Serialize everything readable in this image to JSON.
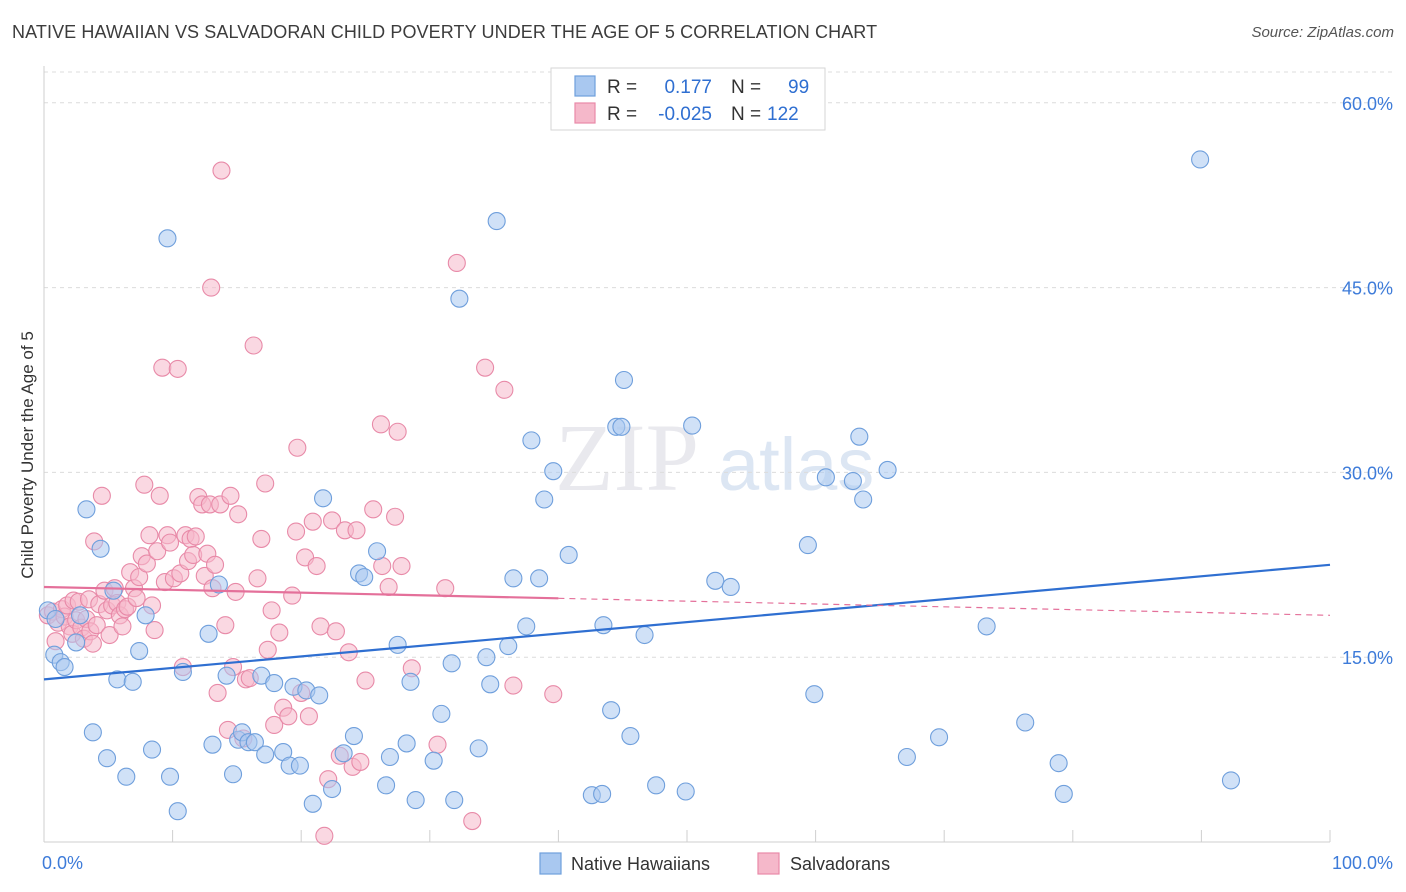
{
  "header": {
    "title": "NATIVE HAWAIIAN VS SALVADORAN CHILD POVERTY UNDER THE AGE OF 5 CORRELATION CHART",
    "source": "Source: ZipAtlas.com"
  },
  "watermark": {
    "zip": "ZIP",
    "atlas": "atlas"
  },
  "legend": {
    "rows": [
      {
        "r_label": "R =",
        "r_value": "0.177",
        "n_label": "N =",
        "n_value": "99"
      },
      {
        "r_label": "R =",
        "r_value": "-0.025",
        "n_label": "N =",
        "n_value": "122"
      }
    ]
  },
  "bottom_legend": {
    "series1": "Native Hawaiians",
    "series2": "Salvadorans"
  },
  "colors": {
    "blue_fill": "#a9c8f0",
    "blue_stroke": "#6f9fdc",
    "blue_line": "#2f6fd1",
    "pink_fill": "#f5b8ca",
    "pink_stroke": "#e88aa8",
    "pink_line": "#e4709a",
    "axis_text": "#3d7bd9"
  },
  "chart_data": {
    "type": "scatter",
    "title": "NATIVE HAWAIIAN VS SALVADORAN CHILD POVERTY UNDER THE AGE OF 5 CORRELATION CHART",
    "xlabel": "",
    "ylabel": "Child Poverty Under the Age of 5",
    "xlim": [
      0,
      100
    ],
    "ylim": [
      0,
      62.5
    ],
    "x_tick_labels": [
      "0.0%",
      "100.0%"
    ],
    "y_ticks": [
      15,
      30,
      45,
      60
    ],
    "y_tick_labels": [
      "15.0%",
      "30.0%",
      "45.0%",
      "60.0%"
    ],
    "series": [
      {
        "name": "Native Hawaiians",
        "r": 0.177,
        "n": 99,
        "trend": {
          "x0": 0,
          "y0": 13.2,
          "x1": 100,
          "y1": 22.5,
          "dashed_from": null
        },
        "points": [
          [
            0.3,
            18.8
          ],
          [
            0.9,
            18.1
          ],
          [
            0.8,
            15.2
          ],
          [
            1.3,
            14.6
          ],
          [
            1.6,
            14.2
          ],
          [
            2.5,
            16.2
          ],
          [
            2.8,
            18.4
          ],
          [
            3.3,
            27
          ],
          [
            3.8,
            8.9
          ],
          [
            4.4,
            23.8
          ],
          [
            4.9,
            6.8
          ],
          [
            5.4,
            20.4
          ],
          [
            5.7,
            13.2
          ],
          [
            6.4,
            5.3
          ],
          [
            6.9,
            13
          ],
          [
            7.4,
            15.5
          ],
          [
            7.9,
            18.4
          ],
          [
            8.4,
            7.5
          ],
          [
            9.6,
            49
          ],
          [
            9.8,
            5.3
          ],
          [
            10.4,
            2.5
          ],
          [
            10.8,
            13.8
          ],
          [
            12.8,
            16.9
          ],
          [
            13.1,
            7.9
          ],
          [
            13.6,
            20.9
          ],
          [
            14.2,
            13.5
          ],
          [
            14.7,
            5.5
          ],
          [
            15.1,
            8.3
          ],
          [
            15.4,
            8.9
          ],
          [
            15.9,
            8.1
          ],
          [
            16.4,
            8.1
          ],
          [
            16.9,
            13.5
          ],
          [
            17.2,
            7.1
          ],
          [
            17.9,
            12.9
          ],
          [
            18.6,
            7.3
          ],
          [
            19.1,
            6.2
          ],
          [
            19.4,
            12.6
          ],
          [
            19.9,
            6.2
          ],
          [
            20.4,
            12.3
          ],
          [
            20.9,
            3.1
          ],
          [
            21.4,
            11.9
          ],
          [
            21.7,
            27.9
          ],
          [
            22.4,
            4.3
          ],
          [
            23.3,
            7.2
          ],
          [
            24.1,
            8.6
          ],
          [
            24.5,
            21.8
          ],
          [
            24.9,
            21.5
          ],
          [
            25.9,
            23.6
          ],
          [
            26.6,
            4.6
          ],
          [
            26.9,
            6.9
          ],
          [
            27.5,
            16
          ],
          [
            28.2,
            8
          ],
          [
            28.5,
            13
          ],
          [
            28.9,
            3.4
          ],
          [
            30.3,
            6.6
          ],
          [
            30.9,
            10.4
          ],
          [
            31.9,
            3.4
          ],
          [
            31.7,
            14.5
          ],
          [
            32.3,
            44.1
          ],
          [
            33.8,
            7.6
          ],
          [
            34.4,
            15
          ],
          [
            34.7,
            12.8
          ],
          [
            35.2,
            50.4
          ],
          [
            36.1,
            15.9
          ],
          [
            36.5,
            21.4
          ],
          [
            37.5,
            17.5
          ],
          [
            37.9,
            32.6
          ],
          [
            38.5,
            21.4
          ],
          [
            38.9,
            27.8
          ],
          [
            39.6,
            30.1
          ],
          [
            40.8,
            23.3
          ],
          [
            42.6,
            3.8
          ],
          [
            43.4,
            3.9
          ],
          [
            43.5,
            17.6
          ],
          [
            44.1,
            10.7
          ],
          [
            44.5,
            33.7
          ],
          [
            44.9,
            33.7
          ],
          [
            45.1,
            37.5
          ],
          [
            45.6,
            8.6
          ],
          [
            46.7,
            16.8
          ],
          [
            47.6,
            4.6
          ],
          [
            49.9,
            4.1
          ],
          [
            50.4,
            33.8
          ],
          [
            52.2,
            21.2
          ],
          [
            53.4,
            20.7
          ],
          [
            59.4,
            24.1
          ],
          [
            59.9,
            12
          ],
          [
            60.8,
            29.6
          ],
          [
            62.9,
            29.3
          ],
          [
            63.4,
            32.9
          ],
          [
            63.7,
            27.8
          ],
          [
            65.6,
            30.2
          ],
          [
            67.1,
            6.9
          ],
          [
            69.6,
            8.5
          ],
          [
            73.3,
            17.5
          ],
          [
            76.3,
            9.7
          ],
          [
            78.9,
            6.4
          ],
          [
            79.3,
            3.9
          ],
          [
            89.9,
            55.4
          ],
          [
            92.3,
            5
          ]
        ]
      },
      {
        "name": "Salvadorans",
        "r": -0.025,
        "n": 122,
        "trend": {
          "x0": 0,
          "y0": 20.7,
          "x1": 100,
          "y1": 18.4,
          "dashed_from": 40
        },
        "points": [
          [
            0.3,
            18.4
          ],
          [
            0.7,
            18.7
          ],
          [
            0.9,
            16.3
          ],
          [
            1.1,
            17.8
          ],
          [
            1.4,
            18.9
          ],
          [
            1.6,
            18.3
          ],
          [
            1.8,
            19.2
          ],
          [
            2.0,
            17.5
          ],
          [
            2.2,
            16.9
          ],
          [
            2.3,
            19.6
          ],
          [
            2.5,
            18.0
          ],
          [
            2.7,
            19.5
          ],
          [
            2.9,
            17.4
          ],
          [
            3.1,
            16.5
          ],
          [
            3.3,
            18.1
          ],
          [
            3.5,
            19.7
          ],
          [
            3.6,
            17.1
          ],
          [
            3.8,
            16.1
          ],
          [
            3.9,
            24.4
          ],
          [
            4.1,
            17.6
          ],
          [
            4.3,
            19.3
          ],
          [
            4.5,
            28.1
          ],
          [
            4.7,
            20.4
          ],
          [
            4.9,
            18.8
          ],
          [
            5.1,
            16.8
          ],
          [
            5.3,
            19.2
          ],
          [
            5.5,
            20.6
          ],
          [
            5.7,
            19.4
          ],
          [
            5.9,
            18.4
          ],
          [
            6.1,
            17.5
          ],
          [
            6.3,
            18.9
          ],
          [
            6.5,
            19.1
          ],
          [
            6.7,
            21.9
          ],
          [
            7.0,
            20.6
          ],
          [
            7.2,
            19.8
          ],
          [
            7.4,
            21.5
          ],
          [
            7.6,
            23.2
          ],
          [
            7.8,
            29
          ],
          [
            8.0,
            22.6
          ],
          [
            8.2,
            24.9
          ],
          [
            8.4,
            19.2
          ],
          [
            8.6,
            17.2
          ],
          [
            8.8,
            23.6
          ],
          [
            9.0,
            28.1
          ],
          [
            9.2,
            38.5
          ],
          [
            9.4,
            21.1
          ],
          [
            9.6,
            24.9
          ],
          [
            9.8,
            24.3
          ],
          [
            10.1,
            21.4
          ],
          [
            10.4,
            38.4
          ],
          [
            10.6,
            21.8
          ],
          [
            10.8,
            14.2
          ],
          [
            11.0,
            24.9
          ],
          [
            11.2,
            22.8
          ],
          [
            11.4,
            24.6
          ],
          [
            11.6,
            23.3
          ],
          [
            11.8,
            24.8
          ],
          [
            12.0,
            28
          ],
          [
            12.3,
            27.4
          ],
          [
            12.5,
            21.6
          ],
          [
            12.7,
            23.4
          ],
          [
            12.9,
            27.4
          ],
          [
            13.1,
            20.6
          ],
          [
            13.3,
            22.5
          ],
          [
            13.5,
            12.1
          ],
          [
            13.7,
            27.4
          ],
          [
            13.0,
            45
          ],
          [
            13.8,
            54.5
          ],
          [
            14.1,
            17.6
          ],
          [
            14.3,
            9.1
          ],
          [
            14.5,
            28.1
          ],
          [
            14.7,
            14.2
          ],
          [
            14.9,
            20.3
          ],
          [
            15.1,
            26.6
          ],
          [
            15.5,
            8.4
          ],
          [
            15.7,
            13.2
          ],
          [
            16.0,
            13.3
          ],
          [
            16.3,
            40.3
          ],
          [
            16.6,
            21.4
          ],
          [
            16.9,
            24.6
          ],
          [
            17.2,
            29.1
          ],
          [
            17.4,
            15.6
          ],
          [
            17.7,
            18.8
          ],
          [
            17.9,
            9.5
          ],
          [
            18.3,
            17
          ],
          [
            18.6,
            10.9
          ],
          [
            19.0,
            10.2
          ],
          [
            19.3,
            20
          ],
          [
            19.6,
            25.2
          ],
          [
            19.7,
            32
          ],
          [
            20.0,
            12.1
          ],
          [
            20.3,
            23.1
          ],
          [
            20.6,
            10.2
          ],
          [
            20.9,
            26
          ],
          [
            21.2,
            22.4
          ],
          [
            21.5,
            17.5
          ],
          [
            21.8,
            0.5
          ],
          [
            22.1,
            5.1
          ],
          [
            22.4,
            26.1
          ],
          [
            22.7,
            17.1
          ],
          [
            23.0,
            7
          ],
          [
            23.4,
            25.3
          ],
          [
            23.7,
            15.4
          ],
          [
            24.0,
            6.1
          ],
          [
            24.3,
            25.3
          ],
          [
            24.6,
            6.5
          ],
          [
            25.0,
            13.1
          ],
          [
            25.6,
            27
          ],
          [
            26.2,
            33.9
          ],
          [
            26.3,
            22.4
          ],
          [
            26.8,
            20.7
          ],
          [
            27.3,
            26.4
          ],
          [
            27.5,
            33.3
          ],
          [
            27.8,
            22.4
          ],
          [
            28.6,
            14.1
          ],
          [
            30.6,
            7.9
          ],
          [
            31.2,
            20.6
          ],
          [
            32.1,
            47
          ],
          [
            33.3,
            1.7
          ],
          [
            34.3,
            38.5
          ],
          [
            35.8,
            36.7
          ],
          [
            36.5,
            12.7
          ],
          [
            39.6,
            12
          ]
        ]
      }
    ]
  }
}
